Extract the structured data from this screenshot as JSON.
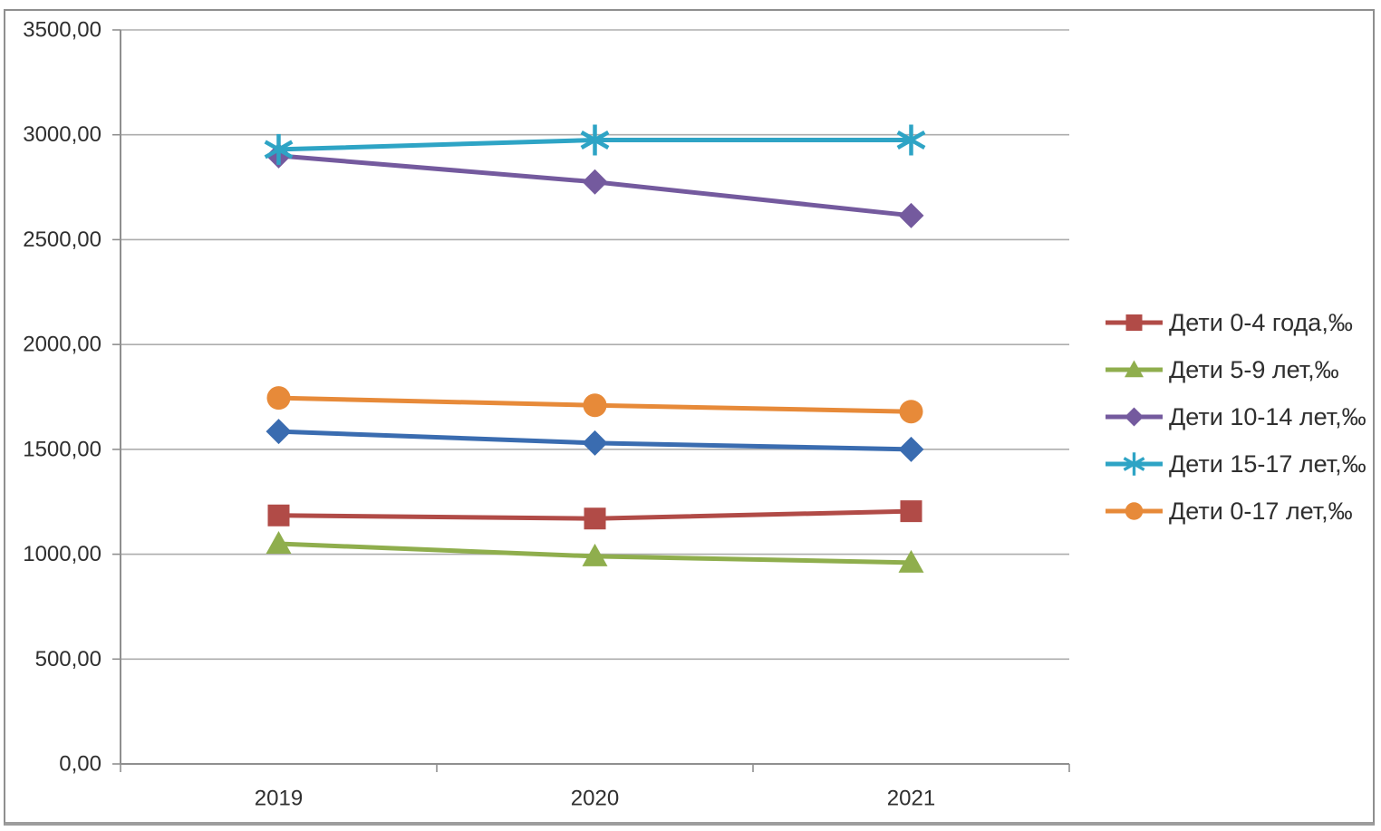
{
  "chart_data": {
    "type": "line",
    "title": "",
    "categories": [
      "2019",
      "2020",
      "2021"
    ],
    "series": [
      {
        "name": "Дети 0-4 года,‰",
        "marker": "square",
        "color": "#b14b47",
        "in_legend": true,
        "values": [
          1185,
          1170,
          1205
        ]
      },
      {
        "name": "Дети 5-9 лет,‰",
        "marker": "triangle",
        "color": "#8fae4d",
        "in_legend": true,
        "values": [
          1050,
          990,
          960
        ]
      },
      {
        "name": "Дети 10-14 лет,‰",
        "marker": "diamond",
        "color": "#745a9e",
        "in_legend": true,
        "values": [
          2900,
          2775,
          2615
        ]
      },
      {
        "name": "Дети 15-17 лет,‰",
        "marker": "asterisk",
        "color": "#2ea4c5",
        "in_legend": true,
        "values": [
          2930,
          2975,
          2975
        ]
      },
      {
        "name": "Дети 0-17 лет,‰",
        "marker": "circle",
        "color": "#e78a39",
        "in_legend": true,
        "values": [
          1745,
          1710,
          1680
        ]
      },
      {
        "name": "",
        "marker": "diamond",
        "color": "#3a6cb0",
        "in_legend": false,
        "values": [
          1585,
          1530,
          1500
        ]
      }
    ],
    "y_axis": {
      "min": 0,
      "max": 3500,
      "step": 500,
      "tick_labels": [
        "3500,00",
        "3000,00",
        "2500,00",
        "2000,00",
        "1500,00",
        "1000,00",
        "500,00",
        "0,00"
      ]
    },
    "grid": true,
    "legend_position": "right"
  }
}
